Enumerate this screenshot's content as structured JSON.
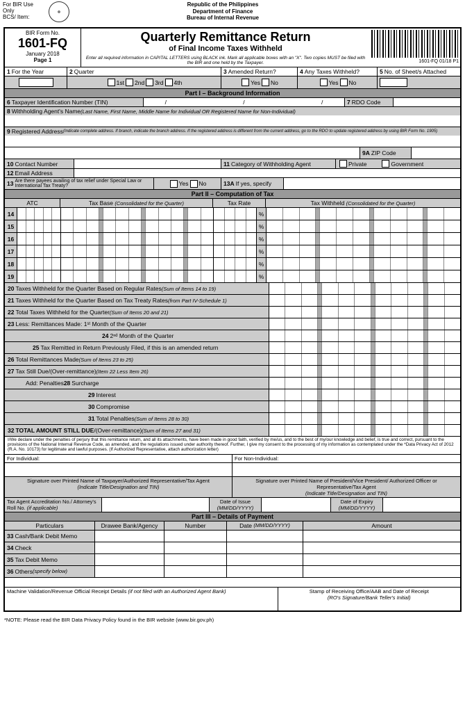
{
  "header": {
    "forBir": "For BIR Use Only",
    "bcs": "BCS/ Item:",
    "republic": "Republic of the Philippines",
    "dept": "Department of Finance",
    "bureau": "Bureau of Internal Revenue"
  },
  "title": {
    "formNoLabel": "BIR Form No.",
    "formNo": "1601-FQ",
    "date": "January 2018",
    "page": "Page 1",
    "main": "Quarterly Remittance Return",
    "sub": "of Final Income Taxes Withheld",
    "instr": "Enter all required information in CAPITAL LETTERS using BLACK ink. Mark all applicable boxes with an \"X\". Two copies MUST be filed with the BIR and one held by the Taxpayer.",
    "barcodeLabel": "1601-FQ 01/18 P1"
  },
  "row1": {
    "f1": "For the Year",
    "f2": "Quarter",
    "q1": "1st",
    "q2": "2nd",
    "q3": "3rd",
    "q4": "4th",
    "f3": "Amended Return?",
    "yes": "Yes",
    "no": "No",
    "f4": "Any Taxes Withheld?",
    "f5": "No. of Sheet/s Attached"
  },
  "part1": {
    "head": "Part I – Background Information",
    "f6": "Taxpayer Identification Number (TIN)",
    "f7": "RDO Code",
    "f8": "Withholding Agent's Name",
    "f8i": "(Last Name, First Name, Middle Name for Individual OR Registered Name for Non-Individual)",
    "f9": "Registered Address",
    "f9i": "(Indicate complete address. If branch, indicate the branch address. If the registered address is different from the current address, go to the RDO to update registered address by using BIR Form No. 1905)",
    "f9a": "ZIP Code",
    "f10": "Contact Number",
    "f11": "Category of Withholding Agent",
    "priv": "Private",
    "gov": "Government",
    "f12": "Email Address",
    "f13": "Are there payees availing of tax relief under Special Law or International Tax Treaty?",
    "f13a": "If yes, specify"
  },
  "part2": {
    "head": "Part II – Computation of Tax",
    "atc": "ATC",
    "taxBase": "Tax Base",
    "taxBaseI": "(Consolidated for the Quarter)",
    "taxRate": "Tax Rate",
    "taxWh": "Tax Withheld",
    "taxWhI": "(Consolidated for the Quarter)",
    "f20": "Taxes Withheld for the Quarter Based on Regular Rates",
    "f20i": "(Sum of Items 14 to 19)",
    "f21": "Taxes Withheld for the Quarter Based on Tax Treaty Rates",
    "f21i": "(from Part IV-Schedule 1)",
    "f22": "Total Taxes Withheld for the Quarter",
    "f22i": "(Sum of Items 20 and 21)",
    "f23": "Less: Remittances Made: 1ˢᵗ Month of the Quarter",
    "f24": "2ⁿᵈ Month of the Quarter",
    "f25": "Tax Remitted in Return Previously Filed, if this is an amended return",
    "f26": "Total Remittances Made",
    "f26i": "(Sum of Items 23 to 25)",
    "f27": "Tax Still Due/(Over-remittance)",
    "f27i": "(Item 22 Less Item 26)",
    "pen": "Add: Penalties",
    "f28": "Surcharge",
    "f29": "Interest",
    "f30": "Compromise",
    "f31": "Total Penalties",
    "f31i": "(Sum of Items 28 to 30)",
    "f32": "TOTAL AMOUNT STILL DUE",
    "f32b": "/(Over-remittance)",
    "f32i": "(Sum of Items 27 and 31)"
  },
  "decl": "I/We declare under the penalties of perjury that this remittance return, and all its attachments, have been made in good faith, verified by me/us, and to the best of my/our knowledge and belief, is true and correct, pursuant to the provisions of the National Internal Revenue Code, as amended, and the regulations issued under authority thereof. Further, I give my consent to the processing of my information as contemplated under the *Data Privacy Act of 2012 (R.A. No. 10173) for legitimate and lawful purposes. (If Authorized Representative, attach authorization letter)",
  "sig": {
    "forInd": "For Individual:",
    "forNonInd": "For Non-Individual:",
    "sig1": "Signature over Printed Name of Taxpayer/Authorized Representative/Tax Agent",
    "sig1i": "(Indicate Title/Designation and TIN)",
    "sig2": "Signature over Printed Name of President/Vice President/ Authorized Officer or Representative/Tax Agent",
    "sig2i": "(Indicate Title/Designation and TIN)",
    "taxAgent": "Tax Agent Accreditation No./ Attorney's Roll No.",
    "taxAgentI": "(if applicable)",
    "dateIssue": "Date of Issue",
    "dateExp": "Date of Expiry",
    "dateFmt": "(MM/DD/YYYY)"
  },
  "part3": {
    "head": "Part III – Details of Payment",
    "part": "Particulars",
    "bank": "Drawee Bank/Agency",
    "num": "Number",
    "date": "Date",
    "dateFmt": "(MM/DD/YYYY)",
    "amt": "Amount",
    "f33": "Cash/Bank Debit Memo",
    "f34": "Check",
    "f35": "Tax Debit Memo",
    "f36": "Others",
    "f36i": "(specify below)",
    "mv": "Machine Validation/Revenue Official Receipt Details",
    "mvi": "(if not filed with an Authorized Agent Bank)",
    "stamp": "Stamp of Receiving Office/AAB and Date of Receipt",
    "stampi": "(RO's Signature/Bank Teller's Initial)"
  },
  "note": "*NOTE: Please read the BIR Data Privacy Policy found in the BIR website (www.bir.gov.ph)"
}
